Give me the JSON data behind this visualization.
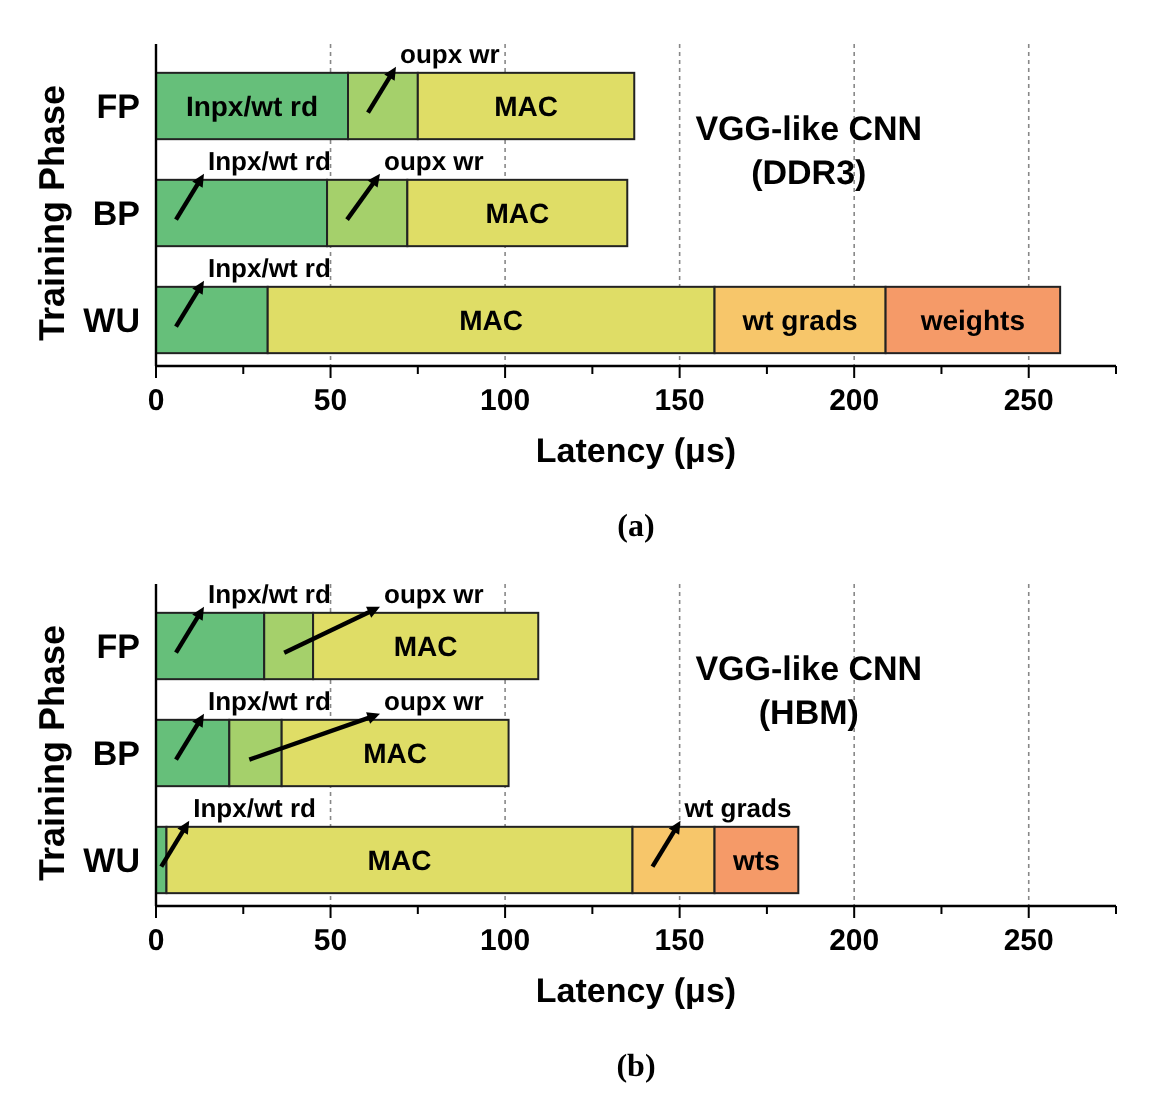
{
  "chart_data": [
    {
      "type": "bar",
      "orientation": "horizontal",
      "stacked": true,
      "title": "(a)",
      "xlabel": "Latency (μs)",
      "ylabel": "Training Phase",
      "categories": [
        "FP",
        "BP",
        "WU"
      ],
      "grid": "x",
      "series": [
        {
          "name": "Inpx/wt rd",
          "color": "#66bf7a",
          "values": [
            55,
            49,
            32
          ]
        },
        {
          "name": "oupx wr",
          "color": "#a5d06b",
          "values": [
            20,
            23,
            null
          ]
        },
        {
          "name": "MAC",
          "color": "#dfdd66",
          "values": [
            62,
            63,
            128
          ]
        },
        {
          "name": "wt grads",
          "color": "#f7c66a",
          "values": [
            null,
            null,
            49
          ]
        },
        {
          "name": "weights",
          "color": "#f59a68",
          "values": [
            null,
            null,
            50
          ]
        }
      ],
      "xlim": [
        0,
        275
      ],
      "xticks": [
        0,
        {
          "value": 25,
          "label": null
        },
        50,
        {
          "value": 75,
          "label": null
        },
        100,
        {
          "value": 125,
          "label": null
        },
        150,
        {
          "value": 175,
          "label": null
        },
        200,
        {
          "value": 225,
          "label": null
        },
        250,
        {
          "value": 275,
          "label": null
        }
      ],
      "annotations": [
        "VGG-like CNN\n(DDR3)"
      ]
    },
    {
      "type": "bar",
      "orientation": "horizontal",
      "stacked": true,
      "title": "(b)",
      "xlabel": "Latency (μs)",
      "ylabel": "Training Phase",
      "categories": [
        "FP",
        "BP",
        "WU"
      ],
      "grid": "x",
      "series": [
        {
          "name": "Inpx/wt rd",
          "color": "#66bf7a",
          "values": [
            31,
            21,
            3
          ]
        },
        {
          "name": "oupx wr",
          "color": "#a5d06b",
          "values": [
            14,
            15,
            null
          ]
        },
        {
          "name": "MAC",
          "color": "#dfdd66",
          "values": [
            64.5,
            65,
            133.5
          ]
        },
        {
          "name": "wt grads",
          "color": "#f7c66a",
          "values": [
            null,
            null,
            23.5
          ]
        },
        {
          "name": "wts",
          "color": "#f59a68",
          "values": [
            null,
            null,
            24
          ]
        }
      ],
      "xlim": [
        0,
        275
      ],
      "xticks": [
        0,
        {
          "value": 25,
          "label": null
        },
        50,
        {
          "value": 75,
          "label": null
        },
        100,
        {
          "value": 125,
          "label": null
        },
        150,
        {
          "value": 175,
          "label": null
        },
        200,
        {
          "value": 225,
          "label": null
        },
        250,
        {
          "value": 275,
          "label": null
        }
      ],
      "annotations": [
        "VGG-like CNN\n(HBM)"
      ]
    }
  ]
}
